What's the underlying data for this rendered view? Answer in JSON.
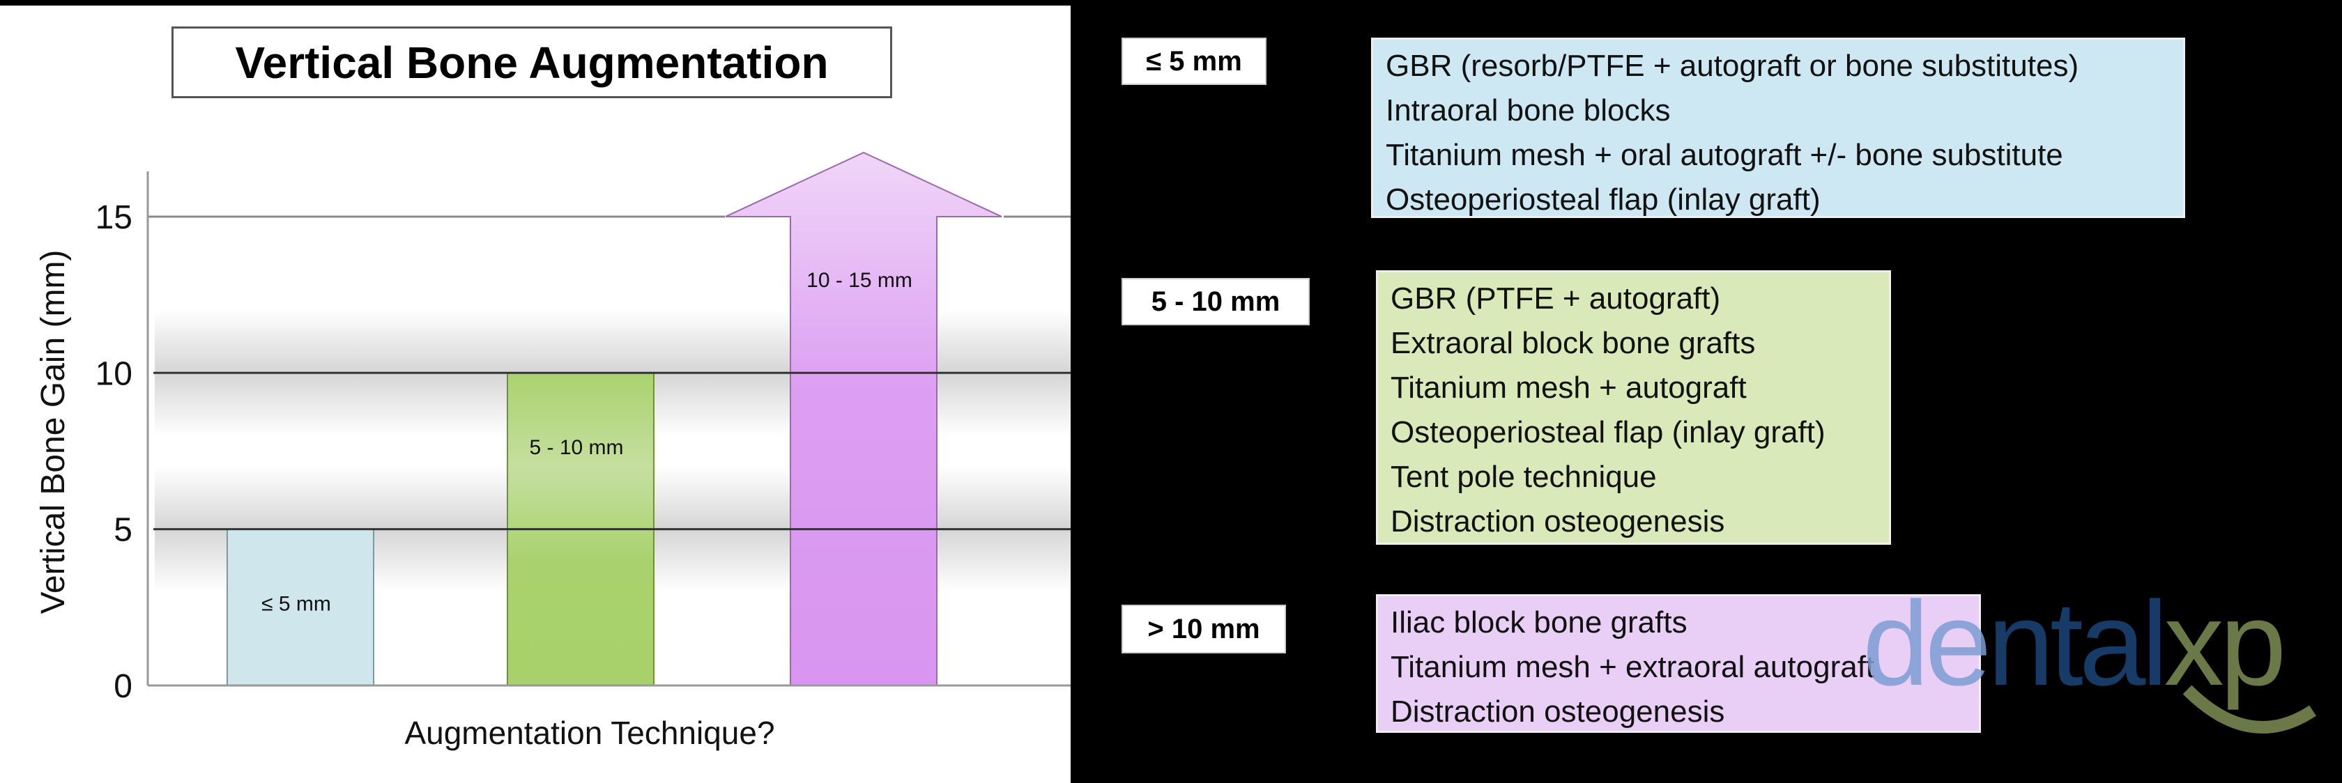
{
  "chart_data": {
    "type": "bar",
    "title": "Vertical Bone Augmentation",
    "xlabel": "Augmentation Technique?",
    "ylabel": "Vertical Bone Gain (mm)",
    "ylim": [
      0,
      16
    ],
    "yticks": [
      0,
      5,
      10,
      15
    ],
    "grid": "horizontal reference lines at 5, 10 and 15",
    "legend": "none",
    "bars": [
      {
        "label": "≤ 5 mm",
        "low": 0,
        "high": 5,
        "color": "#cfe6ec",
        "open_ended": false
      },
      {
        "label": "5 - 10 mm",
        "low": 0,
        "high": 10,
        "color": "#a9d26e",
        "open_ended": false
      },
      {
        "label": "10 - 15 mm",
        "low": 0,
        "high": 15,
        "color": "#d99af1",
        "open_ended": true
      }
    ]
  },
  "techniques": [
    {
      "range": "≤ 5 mm",
      "color": "#cde8f3",
      "items": [
        "GBR (resorb/PTFE + autograft or bone substitutes)",
        "Intraoral bone blocks",
        "Titanium mesh + oral autograft +/- bone substitute",
        "Osteoperiosteal flap (inlay graft)"
      ]
    },
    {
      "range": "5 - 10 mm",
      "color": "#d9e9b9",
      "items": [
        "GBR (PTFE + autograft)",
        "Extraoral block bone grafts",
        "Titanium mesh + autograft",
        "Osteoperiosteal flap (inlay graft)",
        "Tent pole technique",
        "Distraction osteogenesis"
      ]
    },
    {
      "range": "> 10 mm",
      "color": "#e9cff6",
      "items": [
        "Iliac block bone grafts",
        "Titanium mesh + extraoral autograft",
        "Distraction osteogenesis"
      ]
    }
  ],
  "logo": {
    "text": "dentalxp",
    "colors": {
      "de": "#7c9cd3",
      "ntal": "#173a66",
      "xp": "#6b7848"
    }
  }
}
